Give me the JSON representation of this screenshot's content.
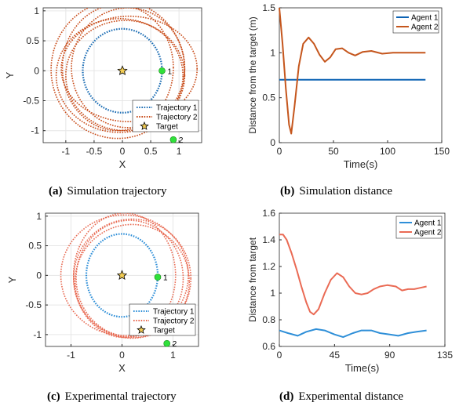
{
  "colors": {
    "traj1": "#1f6fb5",
    "traj2_sim": "#c84b18",
    "traj2_exp": "#e86a52",
    "agent1_sim": "#0d63b4",
    "agent2_sim": "#c5561d",
    "agent1_exp": "#2f8fd8",
    "agent2_exp": "#ea6a54",
    "marker_green": "#2fe03a",
    "star_fill": "#f3cd55"
  },
  "captions": {
    "a_label": "(a)",
    "a_text": "Simulation trajectory",
    "b_label": "(b)",
    "b_text": "Simulation distance",
    "c_label": "(c)",
    "c_text": "Experimental trajectory",
    "d_label": "(d)",
    "d_text": "Experimental distance"
  },
  "chart_data": [
    {
      "id": "a",
      "type": "scatter",
      "xlabel": "X",
      "ylabel": "Y",
      "xlim": [
        -1.4,
        1.4
      ],
      "ylim": [
        -1.2,
        1.05
      ],
      "xticks": [
        "-1",
        "-0.5",
        "0",
        "0.5",
        "1"
      ],
      "yticks": [
        "-1",
        "-0.5",
        "0",
        "0.5",
        "1"
      ],
      "grid": true,
      "legend_position": "bottom-right",
      "legend": [
        "Trajectory 1",
        "Trajectory 2",
        "Target"
      ],
      "target": [
        0,
        0
      ],
      "agents": [
        {
          "label": "1",
          "x": 0.7,
          "y": 0
        },
        {
          "label": "2",
          "x": 0.9,
          "y": -1.15
        }
      ],
      "series": [
        {
          "name": "Trajectory 1",
          "shape": "circle",
          "cx": 0,
          "cy": 0,
          "r": 0.7
        },
        {
          "name": "Trajectory 2",
          "shape": "spiral",
          "orbits": [
            [
              0.1,
              0.05,
              1.0,
              1.0
            ],
            [
              0.05,
              -0.08,
              1.05,
              0.92
            ],
            [
              -0.08,
              0.05,
              0.98,
              1.05
            ],
            [
              -0.05,
              -0.08,
              1.12,
              0.95
            ],
            [
              0.12,
              0.03,
              1.2,
              0.88
            ],
            [
              -0.08,
              0.02,
              1.18,
              1.15
            ]
          ]
        }
      ]
    },
    {
      "id": "b",
      "type": "line",
      "xlabel": "Time(s)",
      "ylabel": "Distance from the target (m)",
      "xlim": [
        0,
        150
      ],
      "ylim": [
        0,
        1.5
      ],
      "xticks": [
        "0",
        "50",
        "100",
        "150"
      ],
      "yticks": [
        "0",
        "0.5",
        "1",
        "1.5"
      ],
      "grid": false,
      "legend_position": "top-right",
      "legend": [
        "Agent 1",
        "Agent 2"
      ],
      "series": [
        {
          "name": "Agent 1",
          "x": [
            0,
            135
          ],
          "y": [
            0.7,
            0.7
          ]
        },
        {
          "name": "Agent 2",
          "x": [
            0,
            3,
            6,
            9,
            11,
            14,
            18,
            22,
            27,
            32,
            37,
            42,
            47,
            52,
            58,
            64,
            70,
            77,
            85,
            95,
            105,
            115,
            125,
            135
          ],
          "y": [
            1.5,
            1.1,
            0.6,
            0.2,
            0.1,
            0.4,
            0.85,
            1.1,
            1.17,
            1.1,
            0.98,
            0.9,
            0.95,
            1.04,
            1.05,
            1.0,
            0.97,
            1.01,
            1.02,
            0.99,
            1.0,
            1.0,
            1.0,
            1.0
          ]
        }
      ]
    },
    {
      "id": "c",
      "type": "scatter",
      "xlabel": "X",
      "ylabel": "Y",
      "xlim": [
        -1.5,
        1.5
      ],
      "ylim": [
        -1.2,
        1.05
      ],
      "xticks": [
        "-1",
        "0",
        "1"
      ],
      "yticks": [
        "-1",
        "-0.5",
        "0",
        "0.5",
        "1"
      ],
      "grid": true,
      "legend_position": "bottom-right",
      "legend": [
        "Trajectory 1",
        "Trajectory 2",
        "Target"
      ],
      "target": [
        0,
        0
      ],
      "agents": [
        {
          "label": "1",
          "x": 0.7,
          "y": -0.03
        },
        {
          "label": "2",
          "x": 0.88,
          "y": -1.15
        }
      ],
      "series": [
        {
          "name": "Trajectory 1",
          "shape": "circle",
          "cx": 0,
          "cy": 0,
          "r": 0.7
        },
        {
          "name": "Trajectory 2",
          "shape": "spiral",
          "orbits": [
            [
              0.05,
              0.0,
              1.0,
              1.05
            ],
            [
              0.15,
              -0.05,
              1.05,
              0.98
            ],
            [
              0.2,
              -0.1,
              1.12,
              0.96
            ],
            [
              0.05,
              0.0,
              1.25,
              1.02
            ],
            [
              0.2,
              -0.05,
              1.15,
              1.0
            ]
          ]
        }
      ]
    },
    {
      "id": "d",
      "type": "line",
      "xlabel": "Time(s)",
      "ylabel": "Distance from target",
      "xlim": [
        0,
        135
      ],
      "ylim": [
        0.6,
        1.6
      ],
      "xticks": [
        "0",
        "45",
        "90",
        "135"
      ],
      "yticks": [
        "0.6",
        "0.8",
        "1",
        "1.2",
        "1.4",
        "1.6"
      ],
      "grid": false,
      "legend_position": "top-right",
      "legend": [
        "Agent 1",
        "Agent 2"
      ],
      "series": [
        {
          "name": "Agent 1",
          "x": [
            0,
            7,
            15,
            22,
            30,
            37,
            45,
            52,
            60,
            67,
            75,
            82,
            90,
            97,
            105,
            112,
            120
          ],
          "y": [
            0.72,
            0.7,
            0.68,
            0.71,
            0.73,
            0.72,
            0.69,
            0.67,
            0.7,
            0.72,
            0.72,
            0.7,
            0.69,
            0.68,
            0.7,
            0.71,
            0.72
          ]
        },
        {
          "name": "Agent 2",
          "x": [
            0,
            3,
            6,
            10,
            14,
            18,
            22,
            25,
            28,
            32,
            37,
            42,
            47,
            52,
            57,
            62,
            67,
            72,
            77,
            82,
            88,
            95,
            100,
            105,
            110,
            115,
            120
          ],
          "y": [
            1.44,
            1.44,
            1.4,
            1.3,
            1.18,
            1.05,
            0.93,
            0.86,
            0.84,
            0.88,
            1.0,
            1.1,
            1.15,
            1.12,
            1.05,
            1.0,
            0.99,
            1.0,
            1.03,
            1.05,
            1.06,
            1.05,
            1.02,
            1.03,
            1.03,
            1.04,
            1.05
          ]
        }
      ]
    }
  ]
}
